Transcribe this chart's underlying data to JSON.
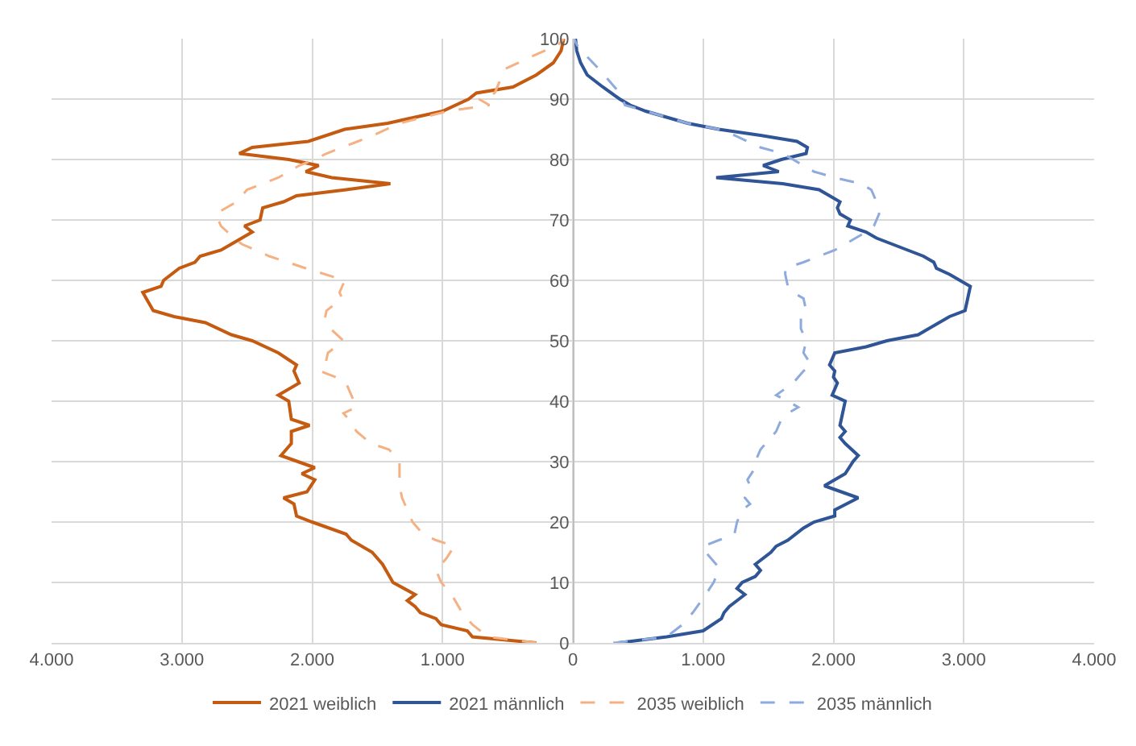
{
  "chart_data": {
    "type": "line",
    "xlim": [
      -4000,
      4000
    ],
    "ylim": [
      0,
      100
    ],
    "xticks": [
      {
        "value": -4000,
        "label": "4.000"
      },
      {
        "value": -3000,
        "label": "3.000"
      },
      {
        "value": -2000,
        "label": "2.000"
      },
      {
        "value": -1000,
        "label": "1.000"
      },
      0,
      {
        "value": 1000,
        "label": "1.000"
      },
      {
        "value": 2000,
        "label": "2.000"
      },
      {
        "value": 3000,
        "label": "3.000"
      },
      {
        "value": 4000,
        "label": "4.000"
      }
    ],
    "yticks": [
      0,
      10,
      20,
      30,
      40,
      50,
      60,
      70,
      80,
      90,
      100
    ],
    "grid": true,
    "legend": "bottom",
    "marker": "none",
    "series": [
      {
        "name": "2021 weiblich",
        "color": "#c55a11",
        "line_style": "solid",
        "x": [
          -280,
          -770,
          -810,
          -1010,
          -1050,
          -1170,
          -1210,
          -1270,
          -1210,
          -1380,
          -1460,
          -1540,
          -1700,
          -1740,
          -2000,
          -2120,
          -2140,
          -2220,
          -2040,
          -1980,
          -2080,
          -1980,
          -2240,
          -2160,
          -2160,
          -2020,
          -2160,
          -2180,
          -2260,
          -2100,
          -2140,
          -2120,
          -2260,
          -2460,
          -2620,
          -2820,
          -3060,
          -3220,
          -3300,
          -3160,
          -3140,
          -3020,
          -2900,
          -2860,
          -2700,
          -2620,
          -2460,
          -2520,
          -2400,
          -2380,
          -2220,
          -2120,
          -1740,
          -1400,
          -1850,
          -2050,
          -1950,
          -2180,
          -2560,
          -2460,
          -2030,
          -1750,
          -1420,
          -1000,
          -800,
          -740,
          -460,
          -280,
          -150,
          -90,
          -70
        ],
        "values": [
          0,
          1,
          2,
          3,
          4,
          5,
          6,
          7,
          8,
          10,
          13,
          15,
          17,
          18,
          20,
          21,
          23,
          24,
          25,
          27,
          28,
          29,
          31,
          33,
          35,
          36,
          37,
          40,
          41,
          43,
          45,
          46,
          48,
          50,
          51,
          53,
          54,
          55,
          58,
          59,
          60,
          62,
          63,
          64,
          65,
          66,
          68,
          69,
          70,
          72,
          73,
          74,
          75,
          76,
          77,
          78,
          79,
          80,
          81,
          82,
          83,
          85,
          86,
          88,
          90,
          91,
          92,
          94,
          96,
          98,
          100
        ]
      },
      {
        "name": "2021 männlich",
        "color": "#2f5597",
        "line_style": "solid",
        "x": [
          350,
          720,
          1000,
          1140,
          1160,
          1200,
          1260,
          1320,
          1260,
          1300,
          1400,
          1440,
          1400,
          1520,
          1560,
          1650,
          1770,
          1850,
          2010,
          2010,
          2190,
          1930,
          2090,
          2150,
          2190,
          2090,
          2050,
          2090,
          2050,
          2070,
          2090,
          1990,
          2030,
          2000,
          2010,
          1970,
          1990,
          2010,
          2250,
          2410,
          2650,
          2730,
          2890,
          3010,
          3030,
          3050,
          2970,
          2890,
          2790,
          2770,
          2690,
          2570,
          2450,
          2330,
          2250,
          2110,
          2130,
          2050,
          2030,
          2050,
          1970,
          1890,
          1610,
          1100,
          1580,
          1460,
          1600,
          1790,
          1800,
          1720,
          1440,
          1120,
          880,
          560,
          440,
          360,
          230,
          110,
          60,
          30,
          20
        ],
        "values": [
          0,
          1,
          2,
          4,
          5,
          6,
          7,
          8,
          9,
          10,
          11,
          12,
          13,
          15,
          16,
          17,
          19,
          20,
          21,
          22,
          24,
          26,
          28,
          30,
          31,
          33,
          34,
          35,
          36,
          38,
          40,
          41,
          43,
          44,
          45,
          46,
          47,
          48,
          49,
          50,
          51,
          52,
          54,
          55,
          57,
          59,
          60,
          61,
          62,
          63,
          64,
          65,
          66,
          67,
          68,
          69,
          70,
          71,
          72,
          73,
          74,
          75,
          76,
          77,
          78,
          79,
          80,
          81,
          82,
          83,
          84,
          85,
          86,
          88,
          89,
          90,
          92,
          94,
          96,
          98,
          100
        ]
      },
      {
        "name": "2035 weiblich",
        "color": "#f4b183",
        "line_style": "dashed",
        "x": [
          -280,
          -650,
          -770,
          -850,
          -930,
          -1010,
          -1050,
          -970,
          -910,
          -1050,
          -1150,
          -1230,
          -1270,
          -1310,
          -1330,
          -1330,
          -1330,
          -1370,
          -1410,
          -1550,
          -1660,
          -1720,
          -1760,
          -1660,
          -1700,
          -1740,
          -1820,
          -1940,
          -1900,
          -1880,
          -1820,
          -1760,
          -1860,
          -1900,
          -1890,
          -1770,
          -1790,
          -1750,
          -2050,
          -2330,
          -2540,
          -2600,
          -2700,
          -2740,
          -2660,
          -2580,
          -2500,
          -2260,
          -2100,
          -1980,
          -1890,
          -1650,
          -1530,
          -1330,
          -960,
          -640,
          -720,
          -600,
          -560,
          -520,
          -320,
          -110,
          -70
        ],
        "values": [
          0,
          1,
          3,
          5,
          8,
          10,
          12,
          14,
          16,
          17,
          18,
          20,
          22,
          24,
          26,
          28,
          30,
          31,
          32,
          33,
          35,
          37,
          38,
          39,
          41,
          43,
          44,
          45,
          46,
          48,
          49,
          50,
          52,
          54,
          55,
          57,
          58,
          60,
          62,
          64,
          66,
          67,
          69,
          71,
          72,
          73,
          75,
          77,
          79,
          80,
          81,
          83,
          84,
          86,
          88,
          89,
          90,
          91,
          93,
          95,
          97,
          99,
          100
        ]
      },
      {
        "name": "2035 männlich",
        "color": "#8faadc",
        "line_style": "dashed",
        "x": [
          310,
          720,
          840,
          920,
          1020,
          1080,
          1120,
          1100,
          1020,
          1000,
          1120,
          1240,
          1260,
          1300,
          1360,
          1320,
          1360,
          1340,
          1400,
          1400,
          1440,
          1520,
          1560,
          1600,
          1650,
          1730,
          1650,
          1560,
          1690,
          1770,
          1830,
          1770,
          1790,
          1750,
          1750,
          1790,
          1770,
          1690,
          1650,
          1630,
          1630,
          1770,
          1890,
          2010,
          2090,
          2170,
          2250,
          2310,
          2350,
          2330,
          2290,
          2210,
          2010,
          1850,
          1690,
          1610,
          1440,
          1240,
          1120,
          880,
          560,
          400,
          360,
          280,
          200,
          110,
          30,
          10
        ],
        "values": [
          0,
          1,
          3,
          5,
          8,
          10,
          12,
          13,
          15,
          16,
          17,
          18,
          20,
          22,
          23,
          24,
          26,
          27,
          29,
          30,
          32,
          34,
          35,
          37,
          38,
          39,
          40,
          41,
          43,
          45,
          46,
          48,
          50,
          52,
          54,
          55,
          57,
          58,
          59,
          61,
          62,
          63,
          64,
          65,
          66,
          67,
          68,
          69,
          71,
          73,
          75,
          76,
          77,
          78,
          80,
          81,
          82,
          84,
          85,
          86,
          88,
          89,
          91,
          93,
          95,
          97,
          99,
          100
        ]
      }
    ]
  }
}
